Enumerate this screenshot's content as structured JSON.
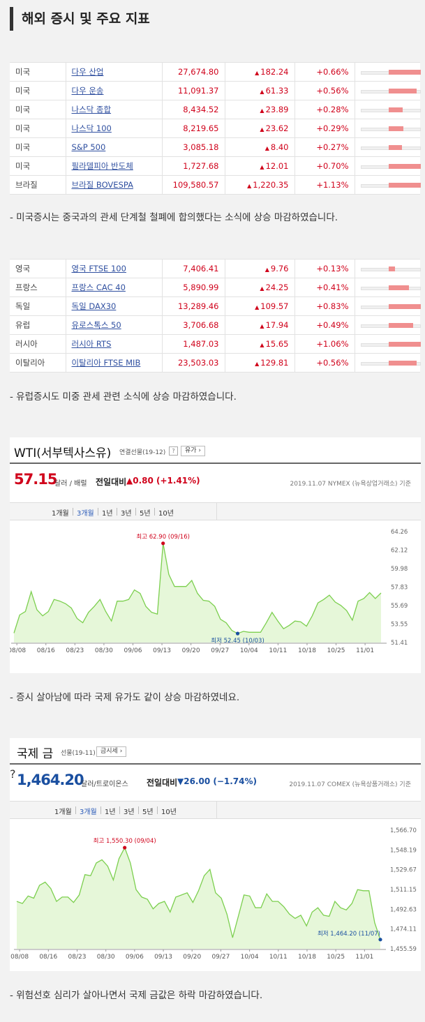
{
  "section_title": "해외 증시 및 주요 지표",
  "us_table": [
    {
      "country": "미국",
      "name": "다우 산업",
      "value": "27,674.80",
      "change": "182.24",
      "pct": "+0.66%",
      "pct_value": 0.66
    },
    {
      "country": "미국",
      "name": "다우 운송",
      "value": "11,091.37",
      "change": "61.33",
      "pct": "+0.56%",
      "pct_value": 0.56
    },
    {
      "country": "미국",
      "name": "나스닥 종합",
      "value": "8,434.52",
      "change": "23.89",
      "pct": "+0.28%",
      "pct_value": 0.28
    },
    {
      "country": "미국",
      "name": "나스닥 100",
      "value": "8,219.65",
      "change": "23.62",
      "pct": "+0.29%",
      "pct_value": 0.29
    },
    {
      "country": "미국",
      "name": "S&P 500",
      "value": "3,085.18",
      "change": "8.40",
      "pct": "+0.27%",
      "pct_value": 0.27
    },
    {
      "country": "미국",
      "name": "필라델피아 반도체",
      "value": "1,727.68",
      "change": "12.01",
      "pct": "+0.70%",
      "pct_value": 0.7
    },
    {
      "country": "브라질",
      "name": "브라질 BOVESPA",
      "value": "109,580.57",
      "change": "1,220.35",
      "pct": "+1.13%",
      "pct_value": 1.13
    }
  ],
  "note_us": "- 미국증시는 중국과의 관세 단계철 철폐에 합의했다는 소식에 상승 마감하였습니다.",
  "eu_table": [
    {
      "country": "영국",
      "name": "영국 FTSE 100",
      "value": "7,406.41",
      "change": "9.76",
      "pct": "+0.13%",
      "pct_value": 0.13
    },
    {
      "country": "프랑스",
      "name": "프랑스 CAC 40",
      "value": "5,890.99",
      "change": "24.25",
      "pct": "+0.41%",
      "pct_value": 0.41
    },
    {
      "country": "독일",
      "name": "독일 DAX30",
      "value": "13,289.46",
      "change": "109.57",
      "pct": "+0.83%",
      "pct_value": 0.83
    },
    {
      "country": "유럽",
      "name": "유로스톡스 50",
      "value": "3,706.68",
      "change": "17.94",
      "pct": "+0.49%",
      "pct_value": 0.49
    },
    {
      "country": "러시아",
      "name": "러시아 RTS",
      "value": "1,487.03",
      "change": "15.65",
      "pct": "+1.06%",
      "pct_value": 1.06
    },
    {
      "country": "이탈리아",
      "name": "이탈리아 FTSE MIB",
      "value": "23,503.03",
      "change": "129.81",
      "pct": "+0.56%",
      "pct_value": 0.56
    }
  ],
  "note_eu": "- 유럽증시도 미중 관세 관련 소식에 상승 마감하였습니다.",
  "wti": {
    "title": "WTI(서부텍사스유)",
    "subtitle": "연결선물(19-12)",
    "sub_button": "유가",
    "price": "57.15",
    "unit": "달러 / 배럴",
    "compare_label": "전일대비",
    "compare": "▲0.80 (+1.41%)",
    "date_src": "2019.11.07  NYMEX (뉴욕상업거래소) 기준",
    "periods": [
      "1개월",
      "3개월",
      "1년",
      "3년",
      "5년",
      "10년"
    ],
    "max_label": "최고 62.90 (09/16)",
    "min_label": "최저 52.45 (10/03)"
  },
  "note_wti": "- 증시 살아남에 따라 국제 유가도 같이 상승 마감하였네요.",
  "gold": {
    "title": "국제 금",
    "subtitle": "선물(19-11)",
    "sub_button": "금시세",
    "price": "1,464.20",
    "unit": "달러/트로이온스",
    "compare_label": "전일대비",
    "compare": "▼26.00 (−1.74%)",
    "date_src": "2019.11.07  COMEX (뉴욕상품거래소) 기준",
    "periods": [
      "1개월",
      "3개월",
      "1년",
      "3년",
      "5년",
      "10년"
    ],
    "max_label": "최고 1,550.30 (09/04)",
    "min_label": "최저 1,464.20 (11/07)"
  },
  "note_gold": "- 위험선호 심리가 살아나면서 국제 금값은 하락 마감하였습니다.",
  "colors": {
    "up": "#d0021b",
    "down": "#1a4fa0",
    "bar": "#f08f8f",
    "area": "#e6f7d9",
    "line": "#7ccf4f"
  },
  "chart_data": [
    {
      "type": "area",
      "title": "WTI(서부텍사스유)",
      "xlabel": "",
      "ylabel": "",
      "x_ticks": [
        "08/08",
        "08/16",
        "08/23",
        "08/30",
        "09/06",
        "09/13",
        "09/20",
        "09/27",
        "10/04",
        "10/11",
        "10/18",
        "10/25",
        "11/01"
      ],
      "y_ticks": [
        64.26,
        62.12,
        59.98,
        57.83,
        55.69,
        53.55,
        51.41
      ],
      "ylim": [
        51.41,
        64.26
      ],
      "values": [
        52.5,
        54.6,
        55.0,
        57.3,
        55.2,
        54.5,
        55.0,
        56.4,
        56.2,
        55.9,
        55.4,
        54.2,
        53.7,
        54.9,
        55.6,
        56.4,
        55.0,
        53.9,
        56.2,
        56.2,
        56.4,
        57.5,
        57.1,
        55.6,
        54.9,
        54.7,
        62.9,
        59.3,
        57.9,
        57.9,
        57.9,
        58.6,
        57.1,
        56.3,
        56.2,
        55.6,
        54.1,
        53.7,
        52.8,
        52.45,
        52.7,
        52.6,
        52.6,
        52.6,
        53.7,
        54.9,
        53.9,
        53.0,
        53.4,
        53.9,
        53.8,
        53.3,
        54.5,
        56.0,
        56.4,
        56.9,
        56.1,
        55.7,
        55.1,
        54.0,
        56.2,
        56.5,
        57.2,
        56.5,
        57.15
      ],
      "max": {
        "value": 62.9,
        "label": "최고 62.90 (09/16)"
      },
      "min": {
        "value": 52.45,
        "label": "최저 52.45 (10/03)"
      },
      "grid": false
    },
    {
      "type": "area",
      "title": "국제 금",
      "xlabel": "",
      "ylabel": "",
      "x_ticks": [
        "08/08",
        "08/16",
        "08/23",
        "08/30",
        "09/06",
        "09/13",
        "09/20",
        "09/27",
        "10/04",
        "10/11",
        "10/18",
        "10/25",
        "11/01"
      ],
      "y_ticks": [
        1566.7,
        1548.19,
        1529.67,
        1511.15,
        1492.63,
        1474.11,
        1455.59
      ],
      "ylim": [
        1455.59,
        1566.7
      ],
      "values": [
        1500,
        1498,
        1505,
        1503,
        1515,
        1518,
        1512,
        1500,
        1504,
        1504,
        1499,
        1506,
        1525,
        1524,
        1536,
        1539,
        1533,
        1520,
        1540,
        1550.3,
        1536,
        1511,
        1504,
        1502,
        1493,
        1498,
        1500,
        1490,
        1504,
        1506,
        1508,
        1499,
        1510,
        1524,
        1530,
        1508,
        1503,
        1488,
        1466,
        1486,
        1506,
        1505,
        1494,
        1494,
        1507,
        1500,
        1500,
        1495,
        1488,
        1484,
        1487,
        1477,
        1490,
        1494,
        1487,
        1486,
        1500,
        1494,
        1492,
        1498,
        1511,
        1510,
        1510,
        1480,
        1464.2
      ],
      "max": {
        "value": 1550.3,
        "label": "최고 1,550.30 (09/04)"
      },
      "min": {
        "value": 1464.2,
        "label": "최저 1,464.20 (11/07)"
      },
      "grid": false
    }
  ]
}
